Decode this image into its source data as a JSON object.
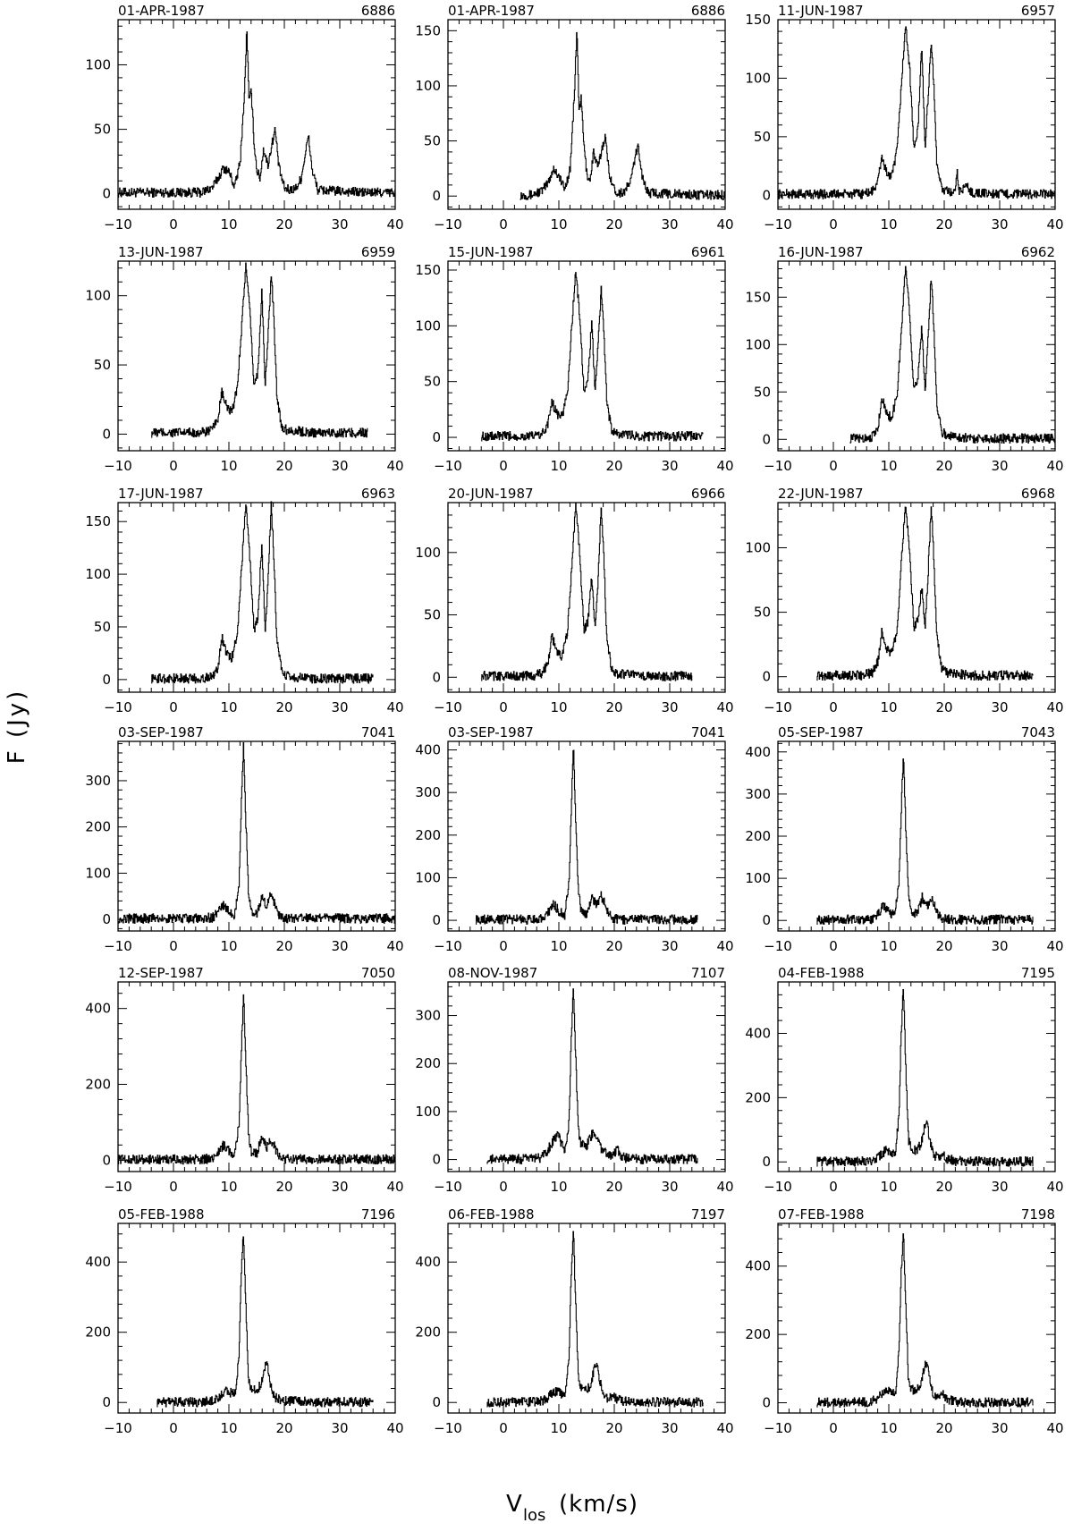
{
  "figure": {
    "ylabel": "F (Jy)",
    "xlabel_main": "V",
    "xlabel_sub": "los",
    "xlabel_unit": "(km/s)"
  },
  "chart_data": [
    {
      "type": "line",
      "title": "01-APR-1987",
      "id": "6886",
      "xlim": [
        -10,
        40
      ],
      "ylim": [
        -12,
        135
      ],
      "yticks": [
        0,
        50,
        100
      ],
      "x": [
        -10,
        0,
        5,
        7,
        8,
        9,
        10,
        11,
        12,
        12.8,
        13.2,
        13.6,
        14,
        14.5,
        15,
        15.6,
        16.2,
        17,
        17.7,
        18.3,
        19,
        20,
        21,
        22,
        23,
        23.7,
        24.3,
        25,
        26,
        30,
        35,
        40
      ],
      "y": [
        1,
        1,
        1,
        5,
        12,
        20,
        17,
        5,
        25,
        80,
        130,
        70,
        80,
        40,
        18,
        12,
        35,
        22,
        38,
        50,
        20,
        4,
        3,
        4,
        12,
        30,
        45,
        18,
        3,
        2,
        1,
        1
      ]
    },
    {
      "type": "line",
      "title": "01-APR-1987",
      "id": "6886",
      "xlim": [
        -10,
        40
      ],
      "ylim": [
        -12,
        160
      ],
      "yticks": [
        0,
        50,
        100,
        150
      ],
      "x": [
        3,
        5,
        7,
        8,
        9,
        10,
        11,
        12,
        12.8,
        13.2,
        13.6,
        14,
        14.5,
        15,
        15.6,
        16.2,
        17,
        17.7,
        18.3,
        19,
        20,
        21,
        22,
        23,
        23.7,
        24.3,
        25,
        26,
        30,
        35,
        40
      ],
      "y": [
        1,
        1,
        5,
        12,
        25,
        18,
        6,
        25,
        95,
        152,
        80,
        88,
        45,
        20,
        14,
        40,
        25,
        42,
        55,
        22,
        5,
        3,
        5,
        15,
        35,
        45,
        18,
        3,
        2,
        1,
        1
      ]
    },
    {
      "type": "line",
      "title": "11-JUN-1987",
      "id": "6957",
      "xlim": [
        -10,
        40
      ],
      "ylim": [
        -12,
        150
      ],
      "yticks": [
        0,
        50,
        100,
        150
      ],
      "x": [
        -10,
        0,
        5,
        7,
        8,
        8.7,
        9.5,
        10.5,
        11.5,
        12.3,
        13,
        13.7,
        14.5,
        15.2,
        15.9,
        16.5,
        17,
        17.6,
        18,
        18.6,
        19.5,
        20.5,
        22,
        22.3,
        22.6,
        24,
        25,
        30,
        35,
        40
      ],
      "y": [
        1,
        1,
        1,
        3,
        12,
        33,
        20,
        15,
        40,
        100,
        145,
        110,
        40,
        55,
        128,
        40,
        80,
        133,
        100,
        30,
        5,
        3,
        2,
        22,
        3,
        8,
        2,
        1,
        1,
        1
      ]
    },
    {
      "type": "line",
      "title": "13-JUN-1987",
      "id": "6959",
      "xlim": [
        -10,
        40
      ],
      "ylim": [
        -12,
        125
      ],
      "yticks": [
        0,
        50,
        100
      ],
      "x": [
        -4,
        0,
        5,
        7,
        8,
        8.7,
        9.5,
        10.5,
        11.5,
        12.3,
        13,
        13.7,
        14.5,
        15.2,
        15.9,
        16.5,
        17,
        17.6,
        18,
        18.6,
        19.5,
        20.5,
        25,
        30,
        35
      ],
      "y": [
        1,
        1,
        1,
        3,
        12,
        30,
        20,
        15,
        35,
        80,
        122,
        90,
        35,
        45,
        105,
        35,
        70,
        115,
        90,
        28,
        5,
        3,
        1,
        1,
        1
      ]
    },
    {
      "type": "line",
      "title": "15-JUN-1987",
      "id": "6961",
      "xlim": [
        -10,
        40
      ],
      "ylim": [
        -12,
        158
      ],
      "yticks": [
        0,
        50,
        100,
        150
      ],
      "x": [
        -4,
        0,
        5,
        7,
        8,
        8.7,
        9.5,
        10.5,
        11.5,
        12.3,
        13,
        13.7,
        14.5,
        15.2,
        15.9,
        16.5,
        17,
        17.6,
        18,
        18.6,
        19.5,
        20.5,
        25,
        30,
        36
      ],
      "y": [
        1,
        1,
        1,
        3,
        12,
        33,
        22,
        18,
        40,
        100,
        150,
        110,
        40,
        50,
        105,
        40,
        80,
        133,
        105,
        32,
        6,
        3,
        1,
        1,
        1
      ]
    },
    {
      "type": "line",
      "title": "16-JUN-1987",
      "id": "6962",
      "xlim": [
        -10,
        40
      ],
      "ylim": [
        -12,
        188
      ],
      "yticks": [
        0,
        50,
        100,
        150
      ],
      "x": [
        3,
        5,
        7,
        8,
        8.7,
        9.5,
        10.5,
        11.5,
        12.3,
        13,
        13.7,
        14.5,
        15.2,
        15.9,
        16.5,
        17,
        17.6,
        18,
        18.6,
        19.5,
        20.5,
        25,
        30,
        35,
        40
      ],
      "y": [
        1,
        1,
        3,
        12,
        45,
        28,
        22,
        50,
        120,
        185,
        135,
        50,
        65,
        120,
        50,
        100,
        172,
        130,
        40,
        8,
        4,
        1,
        1,
        1,
        1
      ]
    },
    {
      "type": "line",
      "title": "17-JUN-1987",
      "id": "6963",
      "xlim": [
        -10,
        40
      ],
      "ylim": [
        -12,
        168
      ],
      "yticks": [
        0,
        50,
        100,
        150
      ],
      "x": [
        -4,
        0,
        5,
        7,
        8,
        8.7,
        9.5,
        10.5,
        11.5,
        12.3,
        13,
        13.7,
        14.5,
        15.2,
        15.9,
        16.5,
        17,
        17.6,
        18,
        18.6,
        19.5,
        20.5,
        25,
        30,
        36
      ],
      "y": [
        1,
        1,
        1,
        3,
        12,
        40,
        25,
        20,
        45,
        110,
        168,
        120,
        45,
        60,
        130,
        45,
        90,
        166,
        125,
        38,
        7,
        3,
        1,
        1,
        1
      ]
    },
    {
      "type": "line",
      "title": "20-JUN-1987",
      "id": "6966",
      "xlim": [
        -10,
        40
      ],
      "ylim": [
        -12,
        140
      ],
      "yticks": [
        0,
        50,
        100
      ],
      "x": [
        -4,
        0,
        5,
        7,
        8,
        8.7,
        9.5,
        10.5,
        11.5,
        12.3,
        13,
        13.7,
        14.5,
        15.2,
        15.9,
        16.5,
        17,
        17.6,
        18,
        18.6,
        19.5,
        20.5,
        25,
        30,
        34
      ],
      "y": [
        1,
        1,
        1,
        3,
        12,
        33,
        22,
        16,
        35,
        90,
        138,
        100,
        38,
        45,
        80,
        38,
        75,
        137,
        105,
        32,
        6,
        3,
        1,
        1,
        1
      ]
    },
    {
      "type": "line",
      "title": "22-JUN-1987",
      "id": "6968",
      "xlim": [
        -10,
        40
      ],
      "ylim": [
        -12,
        135
      ],
      "yticks": [
        0,
        50,
        100
      ],
      "x": [
        -3,
        0,
        5,
        7,
        8,
        8.7,
        9.5,
        10.5,
        11.5,
        12.3,
        13,
        13.7,
        14.5,
        15.2,
        15.9,
        16.5,
        17,
        17.6,
        18,
        18.6,
        19.5,
        20.5,
        25,
        30,
        36
      ],
      "y": [
        1,
        1,
        1,
        3,
        12,
        35,
        22,
        18,
        38,
        95,
        135,
        95,
        38,
        45,
        70,
        38,
        75,
        133,
        100,
        32,
        6,
        3,
        1,
        1,
        1
      ]
    },
    {
      "type": "line",
      "title": "03-SEP-1987",
      "id": "7041",
      "xlim": [
        -10,
        40
      ],
      "ylim": [
        -25,
        385
      ],
      "yticks": [
        0,
        100,
        200,
        300
      ],
      "x": [
        -10,
        0,
        5,
        7,
        8,
        9,
        10,
        11,
        11.8,
        12.2,
        12.6,
        13,
        13.5,
        14,
        15,
        16,
        16.8,
        17.5,
        18.2,
        19,
        20,
        22,
        25,
        30,
        35,
        40
      ],
      "y": [
        2,
        2,
        2,
        4,
        15,
        30,
        18,
        8,
        80,
        250,
        378,
        220,
        60,
        15,
        12,
        50,
        25,
        55,
        35,
        10,
        3,
        2,
        2,
        2,
        2,
        2
      ]
    },
    {
      "type": "line",
      "title": "03-SEP-1987",
      "id": "7041",
      "xlim": [
        -10,
        40
      ],
      "ylim": [
        -25,
        420
      ],
      "yticks": [
        0,
        100,
        200,
        300,
        400
      ],
      "x": [
        -5,
        0,
        5,
        7,
        8,
        9,
        10,
        11,
        11.8,
        12.2,
        12.6,
        13,
        13.5,
        14,
        15,
        16,
        16.8,
        17.5,
        18.2,
        19,
        20,
        22,
        25,
        30,
        35
      ],
      "y": [
        2,
        2,
        2,
        4,
        18,
        38,
        22,
        10,
        90,
        260,
        410,
        230,
        65,
        20,
        15,
        55,
        35,
        60,
        40,
        12,
        4,
        2,
        2,
        2,
        2
      ]
    },
    {
      "type": "line",
      "title": "05-SEP-1987",
      "id": "7043",
      "xlim": [
        -10,
        40
      ],
      "ylim": [
        -25,
        425
      ],
      "yticks": [
        0,
        100,
        200,
        300,
        400
      ],
      "x": [
        -3,
        0,
        5,
        7,
        8,
        9,
        10,
        11,
        11.8,
        12.2,
        12.6,
        13,
        13.5,
        14,
        15,
        16,
        16.8,
        17.5,
        18.2,
        19,
        20,
        22,
        25,
        30,
        36
      ],
      "y": [
        2,
        2,
        2,
        4,
        15,
        35,
        20,
        10,
        90,
        260,
        400,
        230,
        65,
        20,
        15,
        55,
        30,
        55,
        35,
        10,
        3,
        2,
        2,
        2,
        2
      ]
    },
    {
      "type": "line",
      "title": "12-SEP-1987",
      "id": "7050",
      "xlim": [
        -10,
        40
      ],
      "ylim": [
        -30,
        470
      ],
      "yticks": [
        0,
        200,
        400
      ],
      "x": [
        -10,
        0,
        5,
        7,
        8,
        9,
        10,
        11,
        11.8,
        12.2,
        12.6,
        13,
        13.5,
        14,
        15,
        16,
        16.8,
        17.5,
        18.2,
        19,
        20,
        22,
        25,
        30,
        35,
        40
      ],
      "y": [
        2,
        2,
        2,
        5,
        20,
        40,
        25,
        12,
        100,
        280,
        450,
        260,
        70,
        22,
        18,
        65,
        35,
        50,
        35,
        12,
        4,
        2,
        2,
        2,
        2,
        2
      ]
    },
    {
      "type": "line",
      "title": "08-NOV-1987",
      "id": "7107",
      "xlim": [
        -10,
        40
      ],
      "ylim": [
        -25,
        370
      ],
      "yticks": [
        0,
        100,
        200,
        300
      ],
      "x": [
        -3,
        0,
        5,
        7,
        8,
        9,
        9.8,
        10.5,
        11.2,
        11.8,
        12.2,
        12.6,
        13,
        13.5,
        14,
        15,
        16,
        16.8,
        17.5,
        18.5,
        19.5,
        20.5,
        21,
        22,
        25,
        30,
        35
      ],
      "y": [
        1,
        1,
        1,
        5,
        20,
        40,
        55,
        30,
        20,
        80,
        250,
        360,
        210,
        60,
        30,
        30,
        55,
        40,
        25,
        15,
        8,
        22,
        8,
        3,
        1,
        1,
        1
      ]
    },
    {
      "type": "line",
      "title": "04-FEB-1988",
      "id": "7195",
      "xlim": [
        -10,
        40
      ],
      "ylim": [
        -30,
        560
      ],
      "yticks": [
        0,
        200,
        400
      ],
      "x": [
        -3,
        0,
        5,
        7,
        8,
        9,
        9.8,
        10.5,
        11.2,
        11.8,
        12.2,
        12.6,
        13,
        13.5,
        14,
        15,
        15.8,
        16.3,
        16.8,
        17.3,
        18,
        19,
        19.8,
        20.5,
        22,
        25,
        30,
        36
      ],
      "y": [
        1,
        1,
        1,
        4,
        15,
        30,
        38,
        25,
        35,
        150,
        400,
        550,
        300,
        70,
        40,
        35,
        60,
        100,
        125,
        70,
        20,
        12,
        28,
        10,
        3,
        1,
        1,
        1
      ]
    },
    {
      "type": "line",
      "title": "05-FEB-1988",
      "id": "7196",
      "xlim": [
        -10,
        40
      ],
      "ylim": [
        -30,
        510
      ],
      "yticks": [
        0,
        200,
        400
      ],
      "x": [
        -3,
        0,
        5,
        7,
        8,
        9,
        9.8,
        10.5,
        11.2,
        11.8,
        12.2,
        12.6,
        13,
        13.5,
        14,
        15,
        15.8,
        16.3,
        16.8,
        17.3,
        18,
        19,
        20,
        22,
        25,
        30,
        36
      ],
      "y": [
        1,
        1,
        1,
        4,
        15,
        28,
        35,
        25,
        32,
        140,
        370,
        490,
        280,
        65,
        38,
        32,
        55,
        95,
        115,
        65,
        18,
        10,
        5,
        3,
        1,
        1,
        1
      ]
    },
    {
      "type": "line",
      "title": "06-FEB-1988",
      "id": "7197",
      "xlim": [
        -10,
        40
      ],
      "ylim": [
        -30,
        510
      ],
      "yticks": [
        0,
        200,
        400
      ],
      "x": [
        -3,
        0,
        5,
        7,
        8,
        9,
        9.8,
        10.5,
        11.2,
        11.8,
        12.2,
        12.6,
        13,
        13.5,
        14,
        15,
        15.8,
        16.3,
        16.8,
        17.3,
        18,
        19,
        19.8,
        20.5,
        22,
        25,
        30,
        36
      ],
      "y": [
        1,
        1,
        1,
        4,
        15,
        28,
        35,
        25,
        32,
        140,
        370,
        485,
        280,
        65,
        38,
        32,
        55,
        95,
        112,
        65,
        18,
        10,
        22,
        8,
        3,
        1,
        1,
        1
      ]
    },
    {
      "type": "line",
      "title": "07-FEB-1988",
      "id": "7198",
      "xlim": [
        -10,
        40
      ],
      "ylim": [
        -30,
        525
      ],
      "yticks": [
        0,
        200,
        400
      ],
      "x": [
        -3,
        0,
        5,
        7,
        8,
        9,
        9.8,
        10.5,
        11.2,
        11.8,
        12.2,
        12.6,
        13,
        13.5,
        14,
        15,
        15.8,
        16.3,
        16.8,
        17.3,
        18,
        19,
        19.8,
        20.5,
        22,
        25,
        30,
        36
      ],
      "y": [
        1,
        1,
        1,
        4,
        15,
        28,
        38,
        25,
        32,
        150,
        380,
        500,
        290,
        68,
        40,
        35,
        60,
        100,
        120,
        70,
        20,
        12,
        25,
        10,
        3,
        1,
        1,
        1
      ]
    }
  ]
}
